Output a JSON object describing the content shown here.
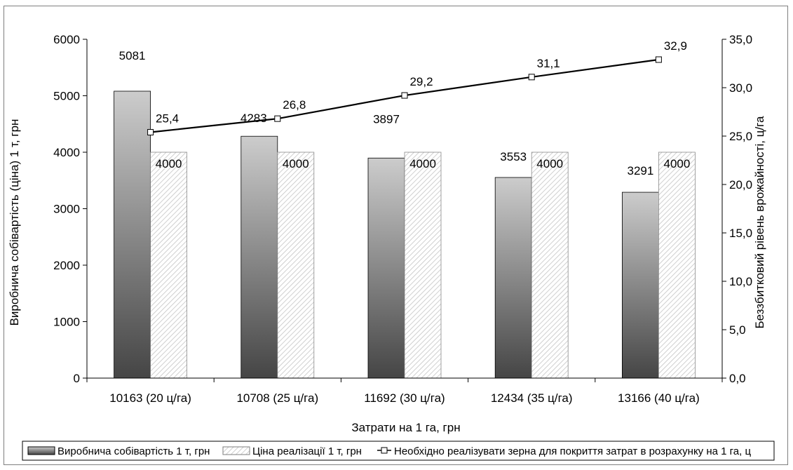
{
  "chart_data": {
    "type": "bar",
    "categories": [
      "10163 (20 ц/га)",
      "10708 (25 ц/га)",
      "11692 (30 ц/га)",
      "12434 (35 ц/га)",
      "13166 (40 ц/га)"
    ],
    "series": [
      {
        "name": "Виробнича собівартість 1 т, грн",
        "type": "bar",
        "axis": "left",
        "values": [
          5081,
          4283,
          3897,
          3553,
          3291
        ],
        "labels": [
          "5081",
          "4283",
          "3897",
          "3553",
          "3291"
        ]
      },
      {
        "name": "Ціна реалізації 1 т, грн",
        "type": "bar",
        "axis": "left",
        "values": [
          4000,
          4000,
          4000,
          4000,
          4000
        ],
        "labels": [
          "4000",
          "4000",
          "4000",
          "4000",
          "4000"
        ]
      },
      {
        "name": "Необхідно реалізувати зерна для покриття затрат в розрахунку на 1 га, ц",
        "type": "line",
        "axis": "right",
        "values": [
          25.4,
          26.8,
          29.2,
          31.1,
          32.9
        ],
        "labels": [
          "25,4",
          "26,8",
          "29,2",
          "31,1",
          "32,9"
        ]
      }
    ],
    "xlabel": "Затрати на 1 га, грн",
    "ylabel": "Виробнича собівартість (ціна) 1 т, грн",
    "y2label": "Беззбитковий рівень врожайності, ц/га",
    "ylim": [
      0,
      6000
    ],
    "y2lim": [
      0,
      35
    ],
    "yticks": [
      "0",
      "1000",
      "2000",
      "3000",
      "4000",
      "5000",
      "6000"
    ],
    "y2ticks": [
      "0,0",
      "5,0",
      "10,0",
      "15,0",
      "20,0",
      "25,0",
      "30,0",
      "35,0"
    ],
    "grid": false,
    "legend_position": "bottom",
    "colors": {
      "bar1_light": "#c8c8c8",
      "bar1_dark": "#4a4a4a",
      "bar2_hatch": "#b8b8b8",
      "line": "#000000",
      "marker_fill": "#ffffff"
    }
  }
}
